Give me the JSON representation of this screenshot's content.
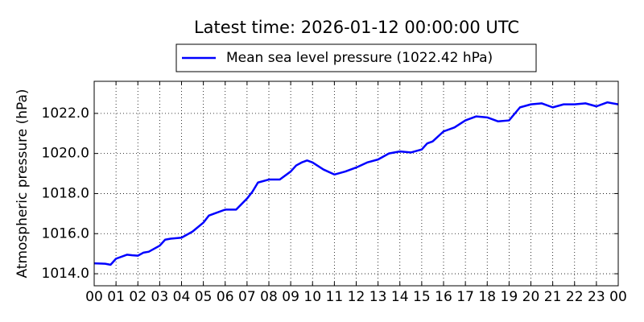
{
  "chart_data": {
    "type": "line",
    "title": "Latest time: 2026-01-12 00:00:00 UTC",
    "y_label": "Atmospheric pressure (hPa)",
    "x": [
      0,
      0.5,
      0.75,
      1,
      1.5,
      1.75,
      2,
      2.25,
      2.5,
      3,
      3.25,
      3.5,
      4,
      4.5,
      5,
      5.25,
      5.5,
      6,
      6.5,
      7,
      7.25,
      7.5,
      8,
      8.5,
      9,
      9.25,
      9.5,
      9.75,
      10,
      10.5,
      11,
      11.5,
      12,
      12.5,
      13,
      13.5,
      14,
      14.5,
      15,
      15.25,
      15.5,
      16,
      16.5,
      17,
      17.5,
      18,
      18.5,
      19,
      19.5,
      20,
      20.5,
      21,
      21.5,
      22,
      22.5,
      23,
      23.5,
      24
    ],
    "series": [
      {
        "name": "Mean sea level pressure (1022.42 hPa)",
        "color": "#0000ff",
        "values": [
          1014.52,
          1014.5,
          1014.45,
          1014.75,
          1014.95,
          1014.92,
          1014.9,
          1015.05,
          1015.1,
          1015.4,
          1015.7,
          1015.75,
          1015.8,
          1016.1,
          1016.55,
          1016.9,
          1017.0,
          1017.2,
          1017.2,
          1017.75,
          1018.1,
          1018.55,
          1018.7,
          1018.7,
          1019.1,
          1019.4,
          1019.55,
          1019.65,
          1019.55,
          1019.2,
          1018.95,
          1019.1,
          1019.3,
          1019.55,
          1019.7,
          1020.0,
          1020.1,
          1020.05,
          1020.2,
          1020.5,
          1020.6,
          1021.1,
          1021.3,
          1021.65,
          1021.85,
          1021.8,
          1021.6,
          1021.65,
          1022.3,
          1022.45,
          1022.5,
          1022.3,
          1022.45,
          1022.45,
          1022.5,
          1022.35,
          1022.55,
          1022.45
        ]
      }
    ],
    "xlim": [
      0,
      24
    ],
    "xticks": [
      {
        "value": 0,
        "label": "00"
      },
      {
        "value": 1,
        "label": "01"
      },
      {
        "value": 2,
        "label": "02"
      },
      {
        "value": 3,
        "label": "03"
      },
      {
        "value": 4,
        "label": "04"
      },
      {
        "value": 5,
        "label": "05"
      },
      {
        "value": 6,
        "label": "06"
      },
      {
        "value": 7,
        "label": "07"
      },
      {
        "value": 8,
        "label": "08"
      },
      {
        "value": 9,
        "label": "09"
      },
      {
        "value": 10,
        "label": "10"
      },
      {
        "value": 11,
        "label": "11"
      },
      {
        "value": 12,
        "label": "12"
      },
      {
        "value": 13,
        "label": "13"
      },
      {
        "value": 14,
        "label": "14"
      },
      {
        "value": 15,
        "label": "15"
      },
      {
        "value": 16,
        "label": "16"
      },
      {
        "value": 17,
        "label": "17"
      },
      {
        "value": 18,
        "label": "18"
      },
      {
        "value": 19,
        "label": "19"
      },
      {
        "value": 20,
        "label": "20"
      },
      {
        "value": 21,
        "label": "21"
      },
      {
        "value": 22,
        "label": "22"
      },
      {
        "value": 23,
        "label": "23"
      },
      {
        "value": 24,
        "label": "00"
      }
    ],
    "ylim": [
      1013.4,
      1023.6
    ],
    "yticks": [
      {
        "value": 1014,
        "label": "1014.0"
      },
      {
        "value": 1016,
        "label": "1016.0"
      },
      {
        "value": 1018,
        "label": "1018.0"
      },
      {
        "value": 1020,
        "label": "1020.0"
      },
      {
        "value": 1022,
        "label": "1022.0"
      }
    ],
    "grid": true
  }
}
